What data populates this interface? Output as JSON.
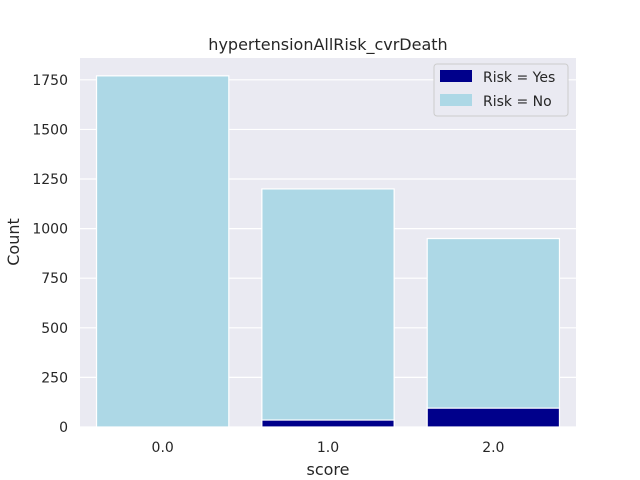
{
  "chart_data": {
    "type": "bar",
    "title": "hypertensionAllRisk_cvrDeath",
    "xlabel": "score",
    "ylabel": "Count",
    "categories": [
      "0.0",
      "1.0",
      "2.0"
    ],
    "series": [
      {
        "name": "Risk = No",
        "values": [
          1770,
          1200,
          950
        ],
        "color": "#add8e6"
      },
      {
        "name": "Risk = Yes",
        "values": [
          0,
          35,
          95
        ],
        "color": "#00008b"
      }
    ],
    "legend_order": [
      "Risk = Yes",
      "Risk = No"
    ],
    "legend_position": "top-right",
    "ylim": [
      0,
      1860
    ],
    "yticks": [
      0,
      250,
      500,
      750,
      1000,
      1250,
      1500,
      1750
    ],
    "ytick_labels": [
      "0",
      "250",
      "500",
      "750",
      "1000",
      "1250",
      "1500",
      "1750"
    ],
    "grid": true,
    "background": "#eaeaf2"
  }
}
